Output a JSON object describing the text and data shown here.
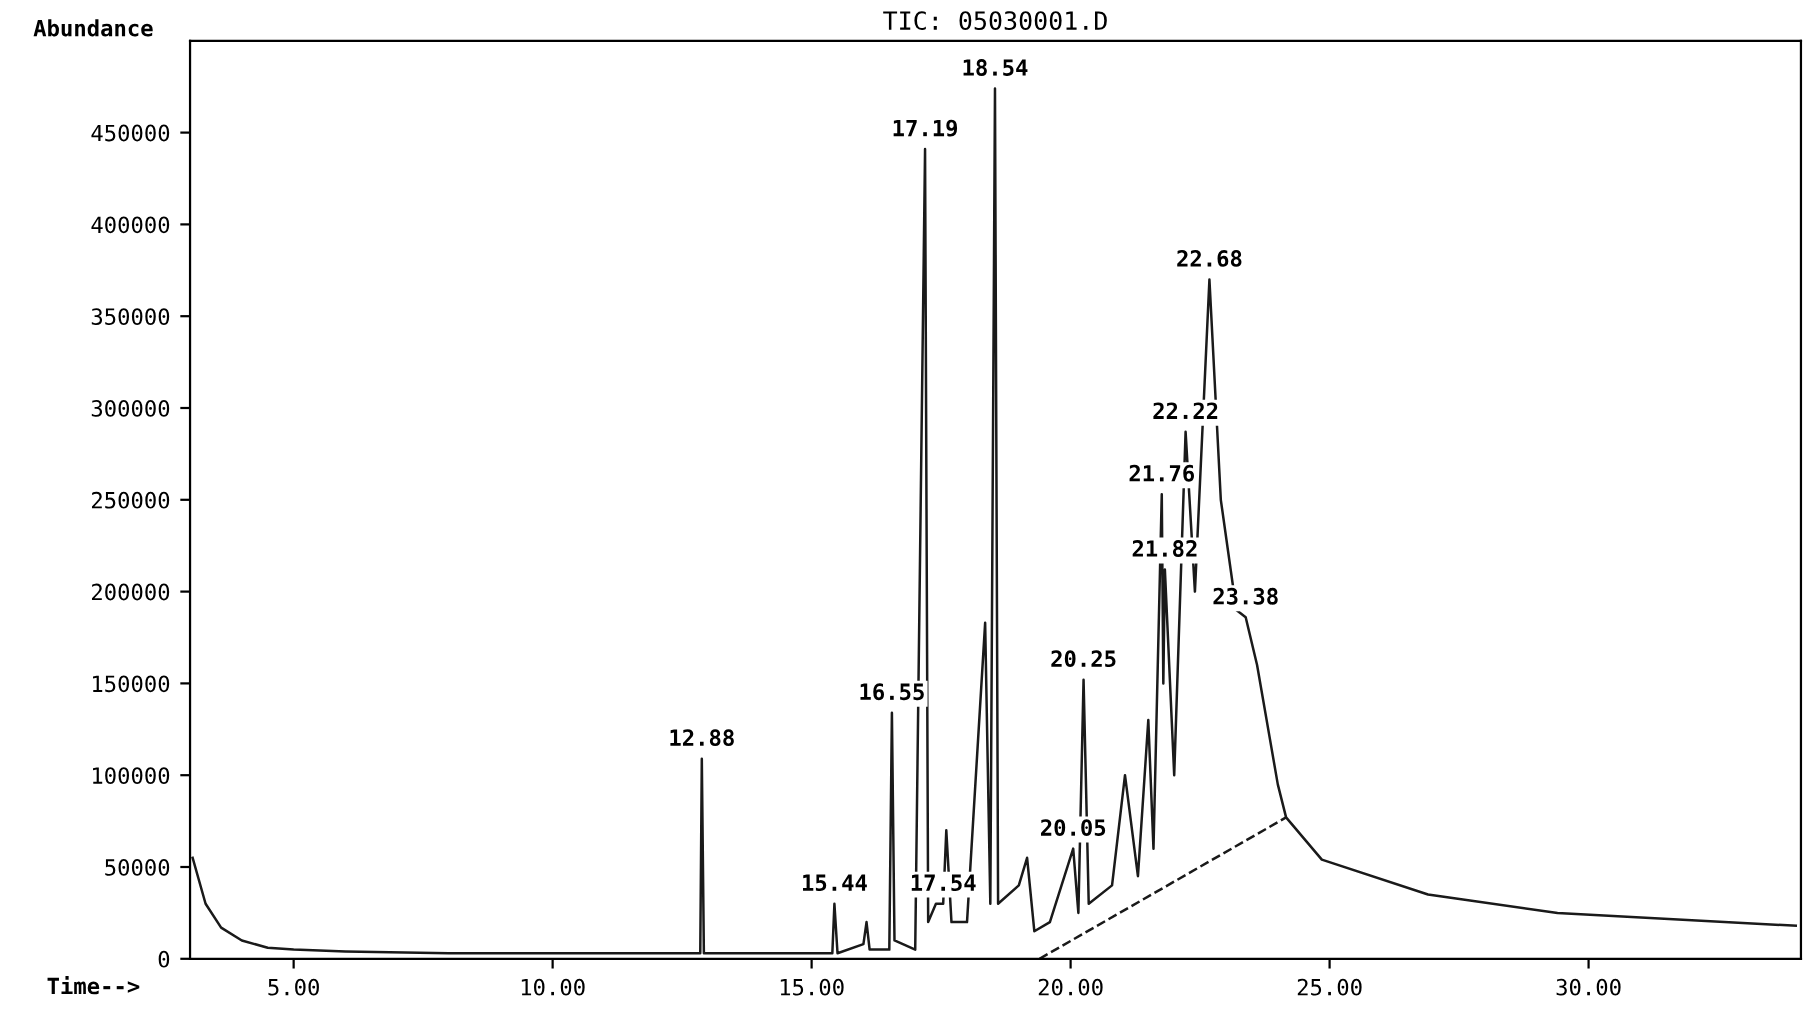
{
  "chart_data": {
    "type": "line",
    "title": "TIC: 05030001.D",
    "xlabel": "Time-->",
    "ylabel": "Abundance",
    "xlim": [
      3.0,
      34.1
    ],
    "ylim": [
      0,
      500000
    ],
    "xticks": [
      {
        "value": 5,
        "label": "5.00"
      },
      {
        "value": 10,
        "label": "10.00"
      },
      {
        "value": 15,
        "label": "15.00"
      },
      {
        "value": 20,
        "label": "20.00"
      },
      {
        "value": 25,
        "label": "25.00"
      },
      {
        "value": 30,
        "label": "30.00"
      }
    ],
    "yticks": [
      0,
      50000,
      100000,
      150000,
      200000,
      250000,
      300000,
      350000,
      400000,
      450000
    ],
    "grid": false,
    "marker": "none",
    "series": [
      {
        "color": "#1a1a1a",
        "line_style": "solid",
        "x": [
          3.05,
          3.3,
          3.6,
          4.0,
          4.5,
          5.0,
          6.0,
          8.0,
          10.0,
          12.0,
          12.85,
          12.88,
          12.92,
          14.0,
          15.4,
          15.44,
          15.5,
          16.0,
          16.06,
          16.12,
          16.5,
          16.55,
          16.6,
          17.0,
          17.19,
          17.25,
          17.4,
          17.54,
          17.6,
          17.7,
          18.0,
          18.35,
          18.45,
          18.54,
          18.6,
          19.0,
          19.16,
          19.3,
          19.6,
          20.05,
          20.15,
          20.25,
          20.35,
          20.8,
          21.05,
          21.3,
          21.5,
          21.6,
          21.76,
          21.79,
          21.82,
          22.0,
          22.22,
          22.4,
          22.68,
          22.9,
          23.2,
          23.38,
          23.6,
          24.0,
          24.16,
          24.85,
          26.9,
          29.4,
          34.0
        ],
        "values": [
          55000,
          30000,
          17000,
          10000,
          6000,
          5000,
          4000,
          3000,
          3000,
          3000,
          3000,
          109000,
          3000,
          3000,
          3000,
          30000,
          3000,
          8000,
          20000,
          5000,
          5000,
          134000,
          10000,
          5000,
          441000,
          20000,
          30000,
          30000,
          70000,
          20000,
          20000,
          183000,
          30000,
          474000,
          30000,
          40000,
          55000,
          15000,
          20000,
          60000,
          25000,
          152000,
          30000,
          40000,
          100000,
          45000,
          130000,
          60000,
          253000,
          150000,
          212000,
          100000,
          287000,
          200000,
          370000,
          250000,
          190000,
          186000,
          160000,
          95000,
          77000,
          54000,
          35000,
          25000,
          18000
        ]
      },
      {
        "color": "#1a1a1a",
        "line_style": "dashed",
        "x": [
          19.4,
          24.16
        ],
        "values": [
          0,
          77000
        ]
      }
    ],
    "annotations": [
      {
        "text": "12.88",
        "x": 12.88,
        "y": 109000
      },
      {
        "text": "15.44",
        "x": 15.44,
        "y": 30000
      },
      {
        "text": "16.55",
        "x": 16.55,
        "y": 134000
      },
      {
        "text": "17.19",
        "x": 17.19,
        "y": 441000
      },
      {
        "text": "17.54",
        "x": 17.54,
        "y": 30000
      },
      {
        "text": "18.54",
        "x": 18.54,
        "y": 474000
      },
      {
        "text": "20.05",
        "x": 20.05,
        "y": 60000
      },
      {
        "text": "20.25",
        "x": 20.25,
        "y": 152000
      },
      {
        "text": "21.76",
        "x": 21.76,
        "y": 253000
      },
      {
        "text": "21.82",
        "x": 21.82,
        "y": 212000
      },
      {
        "text": "22.22",
        "x": 22.22,
        "y": 287000
      },
      {
        "text": "22.68",
        "x": 22.68,
        "y": 370000
      },
      {
        "text": "23.38",
        "x": 23.38,
        "y": 186000
      }
    ]
  }
}
